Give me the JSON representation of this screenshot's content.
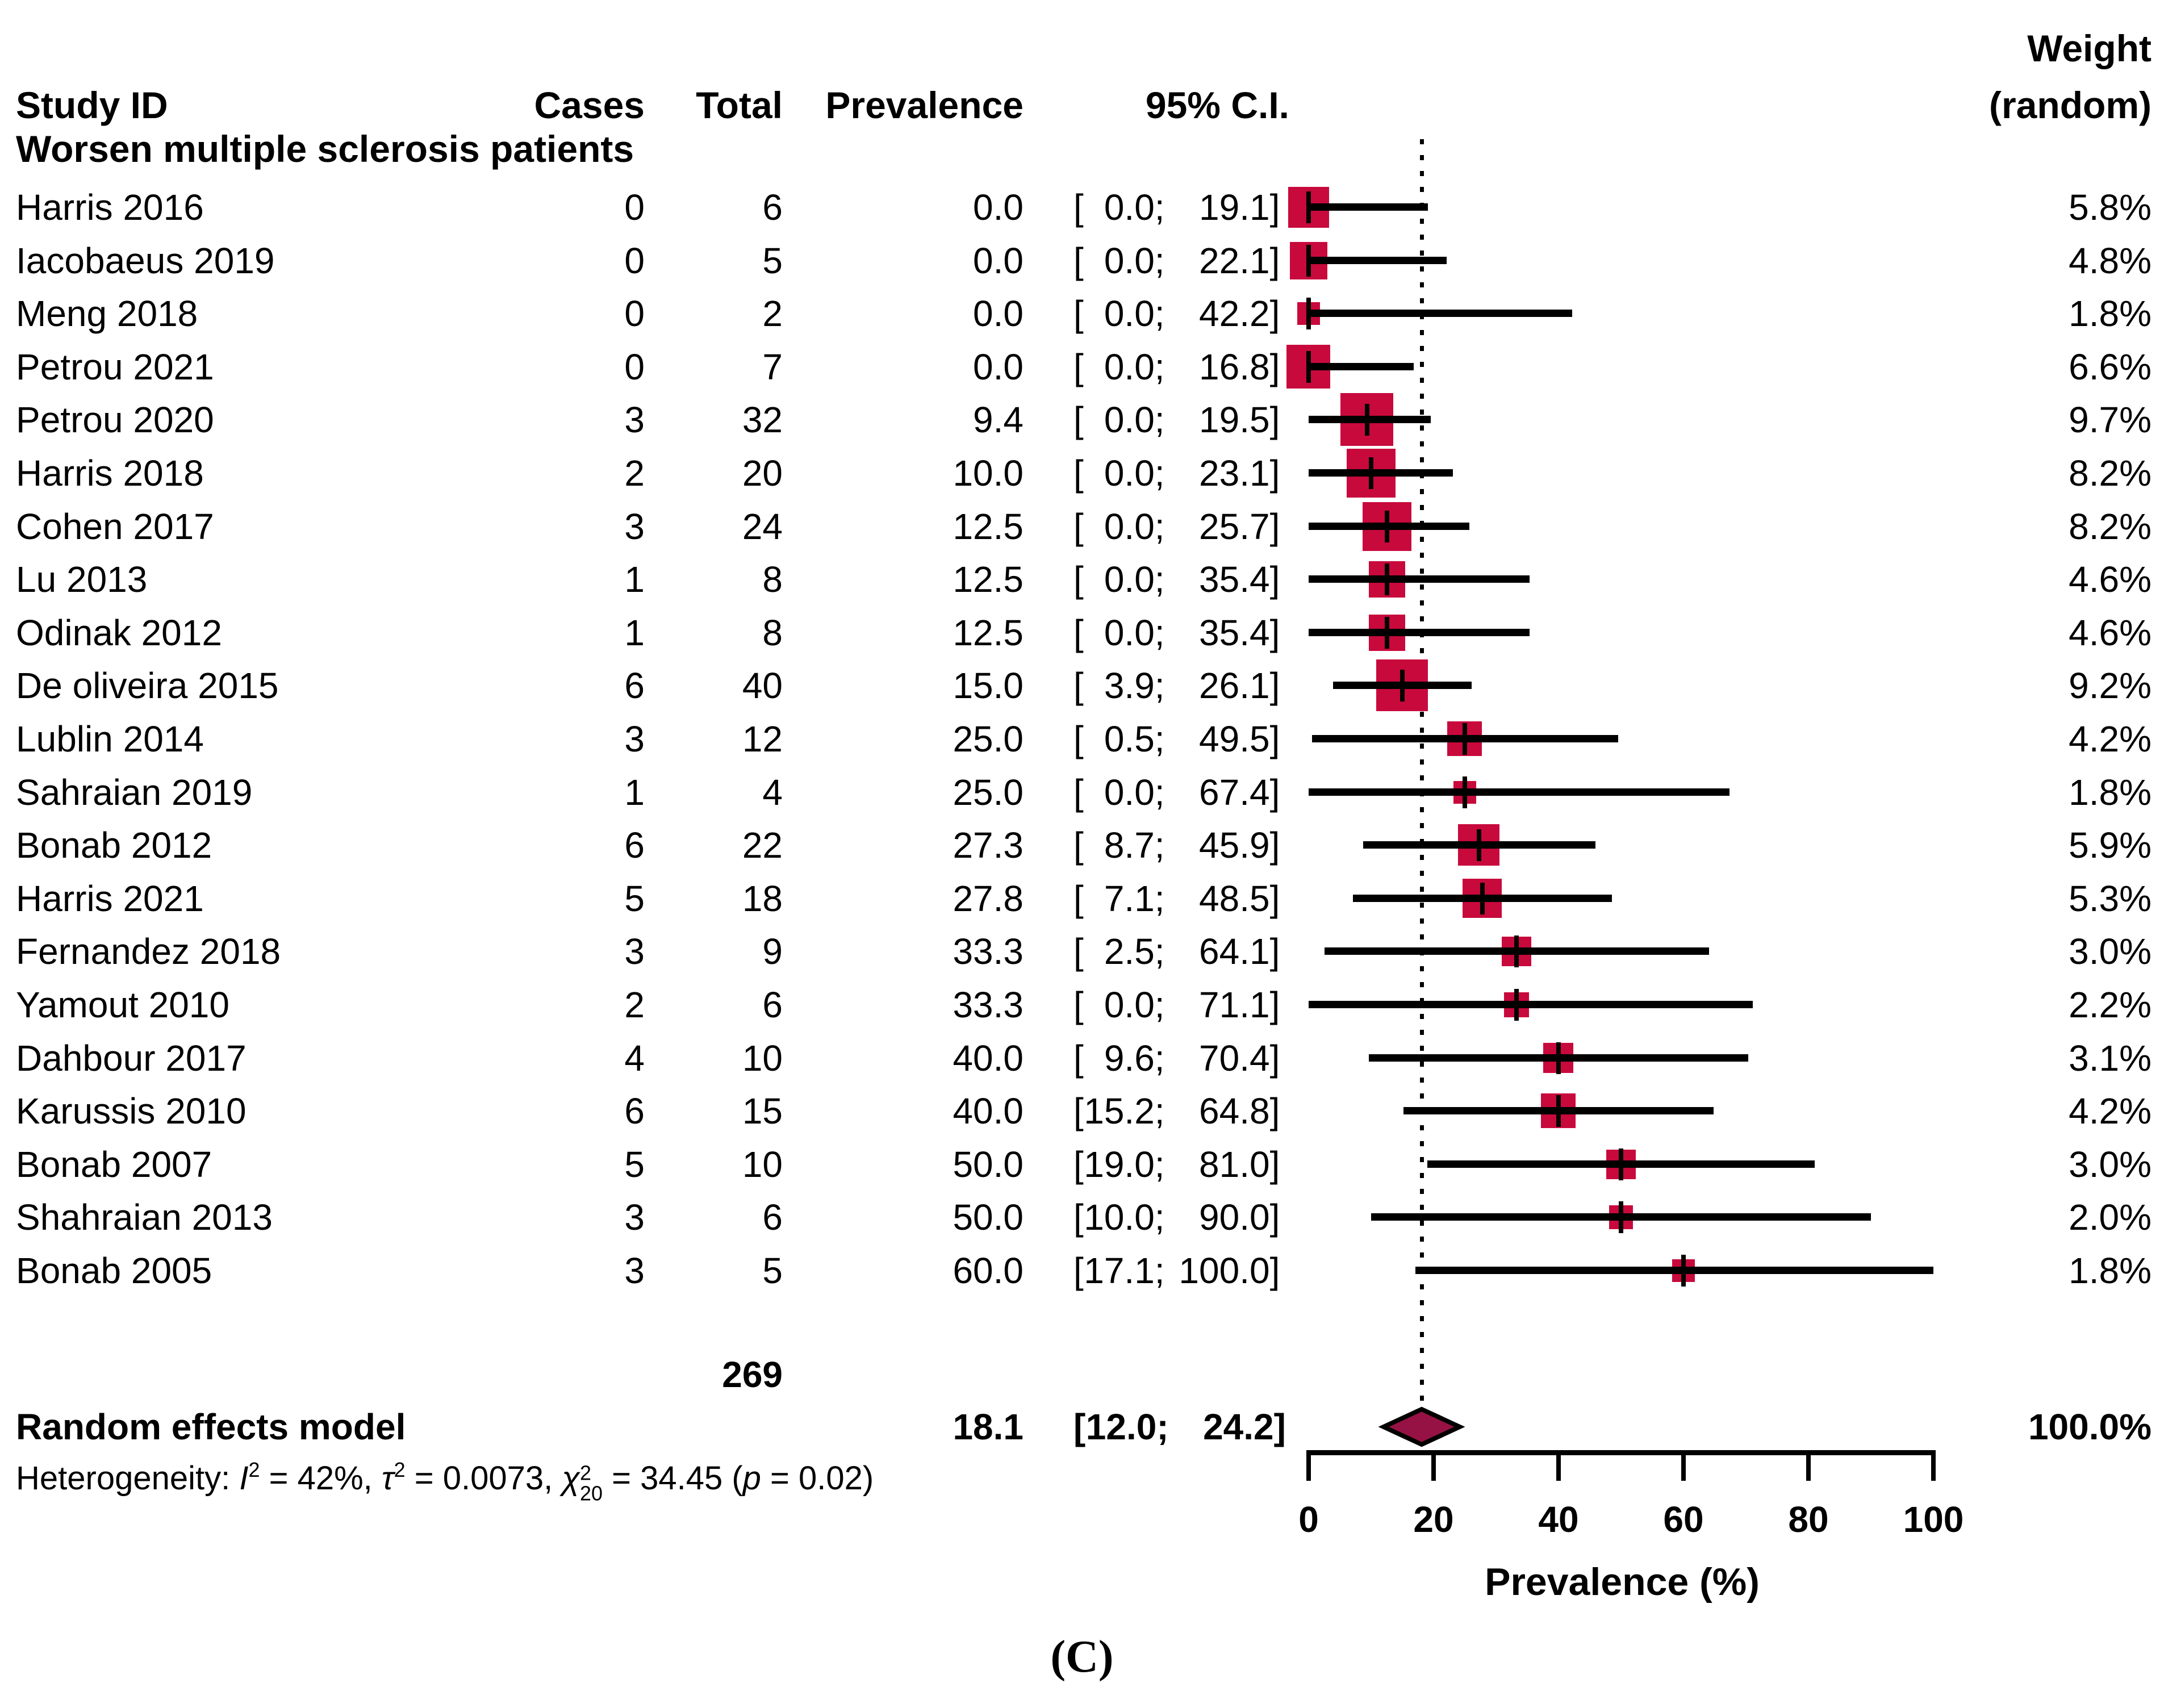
{
  "header": {
    "study": "Study ID",
    "cases": "Cases",
    "total": "Total",
    "prevalence": "Prevalence",
    "ci": "95% C.I.",
    "weight_line1": "Weight",
    "weight_line2": "(random)"
  },
  "group_label": "Worsen multiple sclerosis patients",
  "chart_data": {
    "type": "forest",
    "xlabel": "Prevalence (%)",
    "xlim": [
      0,
      100
    ],
    "x_ticks": [
      0,
      20,
      40,
      60,
      80,
      100
    ],
    "pooled_line_x": 18.1,
    "ci_format": {
      "open": "[",
      "sep": ";",
      "close": "]"
    },
    "colors": {
      "square": "#C8093C",
      "diamond": "#961245",
      "line": "#000000"
    },
    "studies": [
      {
        "study": "Harris 2016",
        "cases": "0",
        "total": "6",
        "prevalence": "0.0",
        "ci_lower": "0.0",
        "ci_upper": "19.1",
        "weight": "5.8%",
        "est": 0.0,
        "lo": 0.0,
        "hi": 19.1,
        "w": 5.8
      },
      {
        "study": "Iacobaeus 2019",
        "cases": "0",
        "total": "5",
        "prevalence": "0.0",
        "ci_lower": "0.0",
        "ci_upper": "22.1",
        "weight": "4.8%",
        "est": 0.0,
        "lo": 0.0,
        "hi": 22.1,
        "w": 4.8
      },
      {
        "study": "Meng 2018",
        "cases": "0",
        "total": "2",
        "prevalence": "0.0",
        "ci_lower": "0.0",
        "ci_upper": "42.2",
        "weight": "1.8%",
        "est": 0.0,
        "lo": 0.0,
        "hi": 42.2,
        "w": 1.8
      },
      {
        "study": "Petrou 2021",
        "cases": "0",
        "total": "7",
        "prevalence": "0.0",
        "ci_lower": "0.0",
        "ci_upper": "16.8",
        "weight": "6.6%",
        "est": 0.0,
        "lo": 0.0,
        "hi": 16.8,
        "w": 6.6
      },
      {
        "study": "Petrou 2020",
        "cases": "3",
        "total": "32",
        "prevalence": "9.4",
        "ci_lower": "0.0",
        "ci_upper": "19.5",
        "weight": "9.7%",
        "est": 9.4,
        "lo": 0.0,
        "hi": 19.5,
        "w": 9.7
      },
      {
        "study": "Harris 2018",
        "cases": "2",
        "total": "20",
        "prevalence": "10.0",
        "ci_lower": "0.0",
        "ci_upper": "23.1",
        "weight": "8.2%",
        "est": 10.0,
        "lo": 0.0,
        "hi": 23.1,
        "w": 8.2
      },
      {
        "study": "Cohen 2017",
        "cases": "3",
        "total": "24",
        "prevalence": "12.5",
        "ci_lower": "0.0",
        "ci_upper": "25.7",
        "weight": "8.2%",
        "est": 12.5,
        "lo": 0.0,
        "hi": 25.7,
        "w": 8.2
      },
      {
        "study": "Lu 2013",
        "cases": "1",
        "total": "8",
        "prevalence": "12.5",
        "ci_lower": "0.0",
        "ci_upper": "35.4",
        "weight": "4.6%",
        "est": 12.5,
        "lo": 0.0,
        "hi": 35.4,
        "w": 4.6
      },
      {
        "study": "Odinak 2012",
        "cases": "1",
        "total": "8",
        "prevalence": "12.5",
        "ci_lower": "0.0",
        "ci_upper": "35.4",
        "weight": "4.6%",
        "est": 12.5,
        "lo": 0.0,
        "hi": 35.4,
        "w": 4.6
      },
      {
        "study": "De oliveira 2015",
        "cases": "6",
        "total": "40",
        "prevalence": "15.0",
        "ci_lower": "3.9",
        "ci_upper": "26.1",
        "weight": "9.2%",
        "est": 15.0,
        "lo": 3.9,
        "hi": 26.1,
        "w": 9.2
      },
      {
        "study": "Lublin 2014",
        "cases": "3",
        "total": "12",
        "prevalence": "25.0",
        "ci_lower": "0.5",
        "ci_upper": "49.5",
        "weight": "4.2%",
        "est": 25.0,
        "lo": 0.5,
        "hi": 49.5,
        "w": 4.2
      },
      {
        "study": "Sahraian 2019",
        "cases": "1",
        "total": "4",
        "prevalence": "25.0",
        "ci_lower": "0.0",
        "ci_upper": "67.4",
        "weight": "1.8%",
        "est": 25.0,
        "lo": 0.0,
        "hi": 67.4,
        "w": 1.8
      },
      {
        "study": "Bonab 2012",
        "cases": "6",
        "total": "22",
        "prevalence": "27.3",
        "ci_lower": "8.7",
        "ci_upper": "45.9",
        "weight": "5.9%",
        "est": 27.3,
        "lo": 8.7,
        "hi": 45.9,
        "w": 5.9
      },
      {
        "study": "Harris 2021",
        "cases": "5",
        "total": "18",
        "prevalence": "27.8",
        "ci_lower": "7.1",
        "ci_upper": "48.5",
        "weight": "5.3%",
        "est": 27.8,
        "lo": 7.1,
        "hi": 48.5,
        "w": 5.3
      },
      {
        "study": "Fernandez 2018",
        "cases": "3",
        "total": "9",
        "prevalence": "33.3",
        "ci_lower": "2.5",
        "ci_upper": "64.1",
        "weight": "3.0%",
        "est": 33.3,
        "lo": 2.5,
        "hi": 64.1,
        "w": 3.0
      },
      {
        "study": "Yamout 2010",
        "cases": "2",
        "total": "6",
        "prevalence": "33.3",
        "ci_lower": "0.0",
        "ci_upper": "71.1",
        "weight": "2.2%",
        "est": 33.3,
        "lo": 0.0,
        "hi": 71.1,
        "w": 2.2
      },
      {
        "study": "Dahbour 2017",
        "cases": "4",
        "total": "10",
        "prevalence": "40.0",
        "ci_lower": "9.6",
        "ci_upper": "70.4",
        "weight": "3.1%",
        "est": 40.0,
        "lo": 9.6,
        "hi": 70.4,
        "w": 3.1
      },
      {
        "study": "Karussis 2010",
        "cases": "6",
        "total": "15",
        "prevalence": "40.0",
        "ci_lower": "15.2",
        "ci_upper": "64.8",
        "weight": "4.2%",
        "est": 40.0,
        "lo": 15.2,
        "hi": 64.8,
        "w": 4.2
      },
      {
        "study": "Bonab 2007",
        "cases": "5",
        "total": "10",
        "prevalence": "50.0",
        "ci_lower": "19.0",
        "ci_upper": "81.0",
        "weight": "3.0%",
        "est": 50.0,
        "lo": 19.0,
        "hi": 81.0,
        "w": 3.0
      },
      {
        "study": "Shahraian 2013",
        "cases": "3",
        "total": "6",
        "prevalence": "50.0",
        "ci_lower": "10.0",
        "ci_upper": "90.0",
        "weight": "2.0%",
        "est": 50.0,
        "lo": 10.0,
        "hi": 90.0,
        "w": 2.0
      },
      {
        "study": "Bonab 2005",
        "cases": "3",
        "total": "5",
        "prevalence": "60.0",
        "ci_lower": "17.1",
        "ci_upper": "100.0",
        "weight": "1.8%",
        "est": 60.0,
        "lo": 17.1,
        "hi": 100.0,
        "w": 1.8
      }
    ],
    "totals": {
      "total": "269"
    },
    "summary": {
      "label": "Random effects model",
      "prevalence": "18.1",
      "ci_lower": "12.0",
      "ci_upper": "24.2",
      "weight": "100.0%",
      "est": 18.1,
      "lo": 12.0,
      "hi": 24.2
    },
    "heterogeneity_segments": [
      {
        "text": "Heterogeneity: "
      },
      {
        "text": "I",
        "style": "i"
      },
      {
        "text": "2",
        "style": "sup"
      },
      {
        "text": " = 42%, "
      },
      {
        "text": "τ",
        "style": "i"
      },
      {
        "text": "2",
        "style": "sup"
      },
      {
        "text": " = 0.0073, "
      },
      {
        "text": "χ",
        "style": "i"
      },
      {
        "style": "supsub",
        "sup": "2",
        "sub": "20"
      },
      {
        "text": " = 34.45 ("
      },
      {
        "text": "p",
        "style": "i"
      },
      {
        "text": " = 0.02)"
      }
    ],
    "caption": "(C)"
  }
}
